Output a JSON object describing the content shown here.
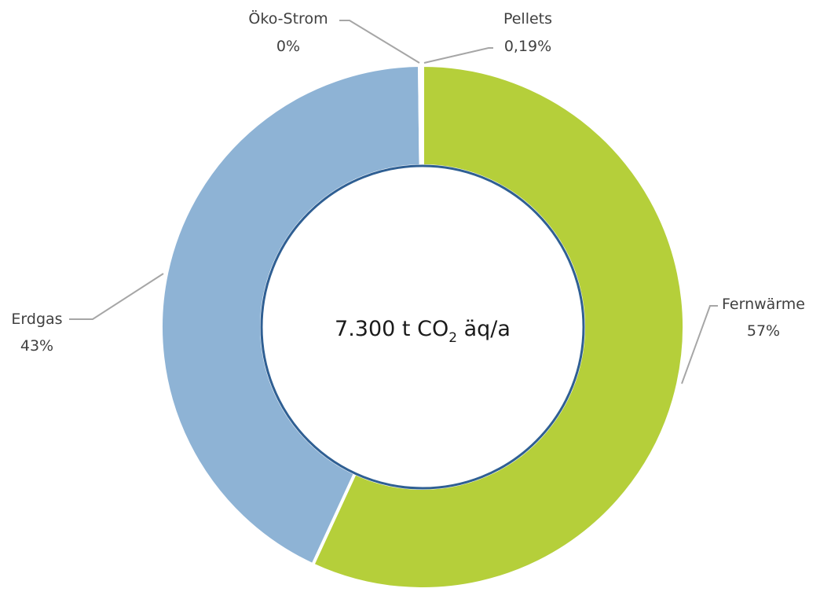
{
  "chart_data": {
    "type": "pie",
    "variant": "donut",
    "center_label": {
      "prefix": "7.300 t CO",
      "subscript": "2",
      "suffix": " äq/a"
    },
    "slices": [
      {
        "name": "Fernwärme",
        "value": 57,
        "label": "57%",
        "color": "#b5cf3a"
      },
      {
        "name": "Erdgas",
        "value": 43,
        "label": "43%",
        "color": "#8eb3d5"
      },
      {
        "name": "Öko-Strom",
        "value": 0,
        "label": "0%",
        "color": "#cccccc"
      },
      {
        "name": "Pellets",
        "value": 0.19,
        "label": "0,19%",
        "color": "#d9d9d9"
      }
    ],
    "slice_border_color": "#ffffff",
    "inner_edge_color": "#2f5f93",
    "leader_line_color": "#a6a6a6"
  }
}
